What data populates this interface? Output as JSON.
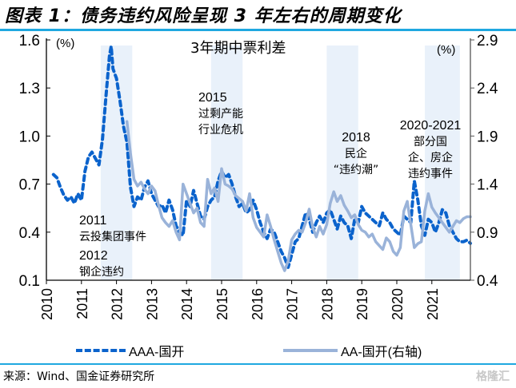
{
  "figure": {
    "title": "图表 1：债务违约风险呈现 3 年左右的周期变化",
    "source": "来源：Wind、国金证券研究所",
    "watermark": "格隆汇"
  },
  "chart_data": {
    "type": "line",
    "title": "3年期中票利差",
    "left_unit": "(%)",
    "right_unit": "(%)",
    "xlim": [
      2010,
      2022.1
    ],
    "x_ticks": [
      "2010",
      "2011",
      "2012",
      "2013",
      "2014",
      "2015",
      "2016",
      "2017",
      "2018",
      "2019",
      "2020",
      "2021"
    ],
    "y_left": {
      "lim": [
        0.1,
        1.6
      ],
      "ticks": [
        "0.1",
        "0.4",
        "0.7",
        "1.0",
        "1.3",
        "1.6"
      ]
    },
    "y_right": {
      "lim": [
        0.4,
        2.9
      ],
      "ticks": [
        "0.4",
        "0.9",
        "1.4",
        "1.9",
        "2.4",
        "2.9"
      ]
    },
    "grid": false,
    "legend_position": "bottom",
    "shaded_periods": [
      {
        "start": 2011.55,
        "end": 2012.45
      },
      {
        "start": 2014.7,
        "end": 2015.6
      },
      {
        "start": 2018.0,
        "end": 2018.9
      },
      {
        "start": 2020.8,
        "end": 2021.8
      }
    ],
    "annotations": [
      {
        "year": "2011",
        "text": "云投集团事件"
      },
      {
        "year": "2012",
        "text": "钢企违约"
      },
      {
        "year": "2015",
        "lines": [
          "过剩产能",
          "行业危机"
        ]
      },
      {
        "year": "2018",
        "lines": [
          "民企",
          "“违约潮”"
        ]
      },
      {
        "year": "2020-2021",
        "lines": [
          "部分国",
          "企、房企",
          "违约事件"
        ]
      }
    ],
    "series": [
      {
        "name": "AAA-国开",
        "axis": "left",
        "style": "dashed",
        "color": "#0b63cc",
        "x": [
          2010.2,
          2010.3,
          2010.4,
          2010.5,
          2010.6,
          2010.7,
          2010.8,
          2010.9,
          2011.0,
          2011.1,
          2011.2,
          2011.3,
          2011.4,
          2011.5,
          2011.6,
          2011.7,
          2011.8,
          2011.85,
          2011.9,
          2012.0,
          2012.1,
          2012.2,
          2012.3,
          2012.4,
          2012.5,
          2012.6,
          2012.7,
          2012.8,
          2012.9,
          2013.0,
          2013.1,
          2013.2,
          2013.3,
          2013.4,
          2013.5,
          2013.6,
          2013.7,
          2013.8,
          2013.9,
          2014.0,
          2014.1,
          2014.2,
          2014.3,
          2014.4,
          2014.5,
          2014.6,
          2014.7,
          2014.8,
          2014.9,
          2015.0,
          2015.1,
          2015.2,
          2015.3,
          2015.4,
          2015.5,
          2015.6,
          2015.7,
          2015.8,
          2015.9,
          2016.0,
          2016.1,
          2016.2,
          2016.3,
          2016.4,
          2016.5,
          2016.6,
          2016.7,
          2016.8,
          2016.9,
          2017.0,
          2017.1,
          2017.2,
          2017.3,
          2017.4,
          2017.5,
          2017.6,
          2017.7,
          2017.8,
          2017.9,
          2018.0,
          2018.1,
          2018.2,
          2018.3,
          2018.4,
          2018.5,
          2018.6,
          2018.7,
          2018.8,
          2018.9,
          2019.0,
          2019.1,
          2019.2,
          2019.3,
          2019.4,
          2019.5,
          2019.6,
          2019.7,
          2019.8,
          2019.9,
          2020.0,
          2020.1,
          2020.2,
          2020.3,
          2020.4,
          2020.5,
          2020.6,
          2020.7,
          2020.8,
          2020.9,
          2021.0,
          2021.1,
          2021.2,
          2021.3,
          2021.4,
          2021.5,
          2021.6,
          2021.7,
          2021.8,
          2021.9,
          2022.0,
          2022.1
        ],
        "y": [
          0.76,
          0.74,
          0.68,
          0.63,
          0.6,
          0.62,
          0.58,
          0.64,
          0.6,
          0.78,
          0.87,
          0.9,
          0.86,
          0.82,
          0.98,
          1.25,
          1.5,
          1.56,
          1.42,
          1.36,
          1.22,
          1.06,
          0.96,
          0.68,
          0.56,
          0.62,
          0.6,
          0.68,
          0.72,
          0.64,
          0.6,
          0.56,
          0.57,
          0.52,
          0.6,
          0.54,
          0.44,
          0.4,
          0.38,
          0.6,
          0.56,
          0.66,
          0.58,
          0.5,
          0.48,
          0.56,
          0.6,
          0.62,
          0.72,
          0.78,
          0.74,
          0.76,
          0.7,
          0.62,
          0.56,
          0.58,
          0.52,
          0.54,
          0.6,
          0.54,
          0.46,
          0.4,
          0.36,
          0.42,
          0.4,
          0.34,
          0.28,
          0.24,
          0.18,
          0.26,
          0.34,
          0.36,
          0.44,
          0.52,
          0.48,
          0.4,
          0.46,
          0.5,
          0.46,
          0.52,
          0.54,
          0.48,
          0.42,
          0.5,
          0.46,
          0.44,
          0.36,
          0.48,
          0.46,
          0.56,
          0.52,
          0.5,
          0.48,
          0.46,
          0.44,
          0.52,
          0.48,
          0.46,
          0.42,
          0.4,
          0.38,
          0.5,
          0.48,
          0.46,
          0.72,
          0.6,
          0.44,
          0.38,
          0.48,
          0.46,
          0.4,
          0.46,
          0.54,
          0.52,
          0.44,
          0.4,
          0.36,
          0.34,
          0.34,
          0.35,
          0.33
        ]
      },
      {
        "name": "AA-国开(右轴)",
        "axis": "right",
        "style": "solid",
        "color": "#9ab3d9",
        "x": [
          2012.3,
          2012.4,
          2012.5,
          2012.6,
          2012.7,
          2012.8,
          2012.9,
          2013.0,
          2013.1,
          2013.2,
          2013.3,
          2013.4,
          2013.5,
          2013.6,
          2013.7,
          2013.8,
          2013.9,
          2014.0,
          2014.1,
          2014.2,
          2014.3,
          2014.4,
          2014.5,
          2014.6,
          2014.7,
          2014.8,
          2014.9,
          2015.0,
          2015.1,
          2015.2,
          2015.3,
          2015.4,
          2015.5,
          2015.6,
          2015.7,
          2015.8,
          2015.9,
          2016.0,
          2016.1,
          2016.2,
          2016.3,
          2016.4,
          2016.5,
          2016.6,
          2016.7,
          2016.8,
          2016.9,
          2017.0,
          2017.1,
          2017.2,
          2017.3,
          2017.4,
          2017.5,
          2017.6,
          2017.7,
          2017.8,
          2017.9,
          2018.0,
          2018.1,
          2018.2,
          2018.3,
          2018.4,
          2018.5,
          2018.6,
          2018.7,
          2018.8,
          2018.9,
          2019.0,
          2019.1,
          2019.2,
          2019.3,
          2019.4,
          2019.5,
          2019.6,
          2019.7,
          2019.8,
          2019.9,
          2020.0,
          2020.1,
          2020.2,
          2020.3,
          2020.4,
          2020.5,
          2020.6,
          2020.7,
          2020.8,
          2020.9,
          2021.0,
          2021.1,
          2021.2,
          2021.3,
          2021.4,
          2021.5,
          2021.6,
          2021.7,
          2021.8,
          2021.9,
          2022.0,
          2022.1
        ],
        "y": [
          2.05,
          1.72,
          1.45,
          1.38,
          1.42,
          1.35,
          1.3,
          1.38,
          1.33,
          1.18,
          1.05,
          1.0,
          0.96,
          1.02,
          0.9,
          0.82,
          1.4,
          1.3,
          1.2,
          1.1,
          1.15,
          1.0,
          0.96,
          1.45,
          1.3,
          1.36,
          1.22,
          1.56,
          1.4,
          1.38,
          1.35,
          1.28,
          1.25,
          1.22,
          1.12,
          1.3,
          1.05,
          0.95,
          0.9,
          0.85,
          1.08,
          0.96,
          0.82,
          0.7,
          0.58,
          0.5,
          0.6,
          0.82,
          0.88,
          0.92,
          0.9,
          1.0,
          1.14,
          0.95,
          0.85,
          0.96,
          0.88,
          0.98,
          1.2,
          1.32,
          1.22,
          1.28,
          1.18,
          1.12,
          1.05,
          1.08,
          0.98,
          0.92,
          0.9,
          0.85,
          0.88,
          0.8,
          0.76,
          0.72,
          0.84,
          0.8,
          0.7,
          0.66,
          0.74,
          1.12,
          1.22,
          0.98,
          0.74,
          0.78,
          0.8,
          1.12,
          1.3,
          1.16,
          1.1,
          1.05,
          1.0,
          0.95,
          0.9,
          0.96,
          1.02,
          1.0,
          1.04,
          1.06,
          1.06
        ]
      }
    ]
  },
  "legend": {
    "items": [
      {
        "label": "AAA-国开"
      },
      {
        "label": "AA-国开(右轴)"
      }
    ]
  }
}
